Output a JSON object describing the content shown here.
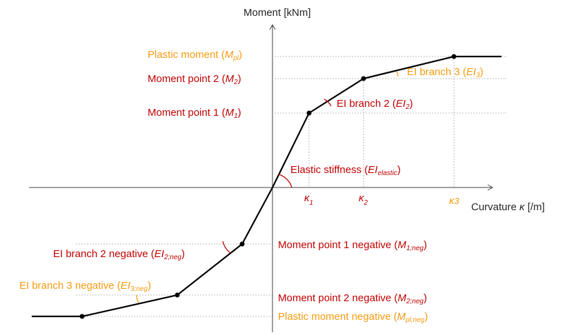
{
  "axes": {
    "y_label": "Moment [kNm]",
    "x_label_text": "Curvature ",
    "x_label_symbol": "κ",
    "x_label_unit": " [/m]"
  },
  "ticks": {
    "k1": "κ",
    "k1_sub": "1",
    "k2": "κ",
    "k2_sub": "2",
    "k3": "κ",
    "k3_sub": "3"
  },
  "labels": {
    "plastic_moment": {
      "text": "Plastic moment (",
      "sym": "M",
      "sub": "pl",
      "close": ")"
    },
    "moment_point_2": {
      "text": "Moment point 2 (",
      "sym": "M",
      "sub": "2",
      "close": ")"
    },
    "moment_point_1": {
      "text": "Moment point 1 (",
      "sym": "M",
      "sub": "1",
      "close": ")"
    },
    "ei_branch_3": {
      "text": "EI branch 3 (",
      "sym": "EI",
      "sub": "3",
      "close": ")"
    },
    "ei_branch_2": {
      "text": "EI branch 2 (",
      "sym": "EI",
      "sub": "2",
      "close": ")"
    },
    "elastic_stiffness": {
      "text": "Elastic stiffness (",
      "sym": "EI",
      "sub": "elastic",
      "close": ")"
    },
    "moment_point_1_negative": {
      "text": "Moment point 1 negative (",
      "sym": "M",
      "sub": "1;neg",
      "close": ")"
    },
    "ei_branch_2_negative": {
      "text": "EI branch 2 negative (",
      "sym": "EI",
      "sub": "2;neg",
      "close": ")"
    },
    "ei_branch_3_negative": {
      "text": "EI branch 3 negative (",
      "sym": "EI",
      "sub": "3;neg",
      "close": ")"
    },
    "moment_point_2_negative": {
      "text": "Moment point 2 negative (",
      "sym": "M",
      "sub": "2;neg",
      "close": ")"
    },
    "plastic_moment_negative": {
      "text": "Plastic moment negative (",
      "sym": "M",
      "sub": "pl;neg",
      "close": ")"
    }
  },
  "colors": {
    "red": "#c00000",
    "orange": "#f59a10",
    "curve": "#000000",
    "axis": "#404040",
    "guide": "#a6a6a6"
  }
}
